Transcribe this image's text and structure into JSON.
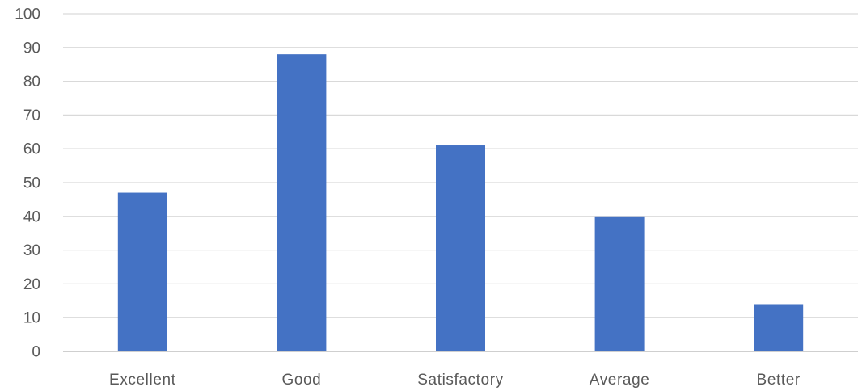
{
  "chart_data": {
    "type": "bar",
    "title": "",
    "xlabel": "",
    "ylabel": "",
    "categories": [
      "Excellent",
      "Good",
      "Satisfactory",
      "Average",
      "Better"
    ],
    "values": [
      47,
      88,
      61,
      40,
      14
    ],
    "ylim": [
      0,
      100
    ],
    "yticks": [
      "0",
      "10",
      "20",
      "30",
      "40",
      "50",
      "60",
      "70",
      "80",
      "90",
      "100"
    ],
    "grid": true,
    "legend": "none",
    "colors": {
      "bar": "#4472C4",
      "grid": "#D9D9D9",
      "axis": "#BFBFBF",
      "text": "#595959"
    }
  }
}
